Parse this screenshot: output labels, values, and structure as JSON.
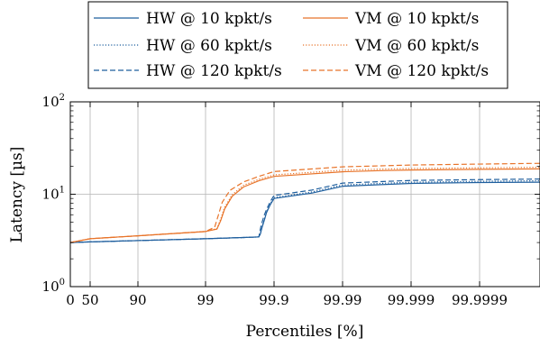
{
  "chart_data": {
    "type": "line",
    "title": "",
    "xlabel": "Percentiles [%]",
    "ylabel": "Latency [µs]",
    "y_scale": "log",
    "ylim": [
      1,
      100
    ],
    "x_scale": "percentile-nines",
    "xlim": [
      0,
      99.99999
    ],
    "grid": true,
    "legend_position": "top-center",
    "x_ticks": [
      {
        "value": 0,
        "label": "0"
      },
      {
        "value": 50,
        "label": "50"
      },
      {
        "value": 90,
        "label": "90"
      },
      {
        "value": 99,
        "label": "99"
      },
      {
        "value": 99.9,
        "label": "99.9"
      },
      {
        "value": 99.99,
        "label": "99.99"
      },
      {
        "value": 99.999,
        "label": "99.999"
      },
      {
        "value": 99.9999,
        "label": "99.9999"
      }
    ],
    "y_ticks": [
      {
        "value": 1,
        "label_base": "10",
        "label_exp": "0"
      },
      {
        "value": 10,
        "label_base": "10",
        "label_exp": "1"
      },
      {
        "value": 100,
        "label_base": "10",
        "label_exp": "2"
      }
    ],
    "series": [
      {
        "name": "HW @ 10 kpkt/s",
        "color": "#1f5f9e",
        "dash": "solid",
        "x": [
          0,
          50,
          90,
          99,
          99.5,
          99.7,
          99.72,
          99.74,
          99.78,
          99.8,
          99.85,
          99.9,
          99.95,
          99.99,
          99.995,
          99.999,
          99.9999,
          99.99999
        ],
        "y": [
          3.0,
          3.05,
          3.15,
          3.3,
          3.4,
          3.45,
          3.7,
          4.3,
          5.5,
          6.3,
          7.7,
          9.0,
          10.3,
          12.2,
          12.7,
          13.1,
          13.4,
          13.5
        ]
      },
      {
        "name": "HW @ 60 kpkt/s",
        "color": "#1f5f9e",
        "dash": "dotted",
        "x": [
          0,
          50,
          90,
          99,
          99.5,
          99.7,
          99.72,
          99.74,
          99.78,
          99.8,
          99.85,
          99.9,
          99.95,
          99.99,
          99.995,
          99.999,
          99.9999,
          99.99999
        ],
        "y": [
          3.0,
          3.05,
          3.15,
          3.3,
          3.4,
          3.45,
          3.75,
          4.4,
          5.6,
          6.4,
          7.9,
          9.2,
          10.6,
          12.6,
          13.1,
          13.5,
          13.8,
          14.0
        ]
      },
      {
        "name": "HW @ 120 kpkt/s",
        "color": "#1f5f9e",
        "dash": "dashed",
        "x": [
          0,
          50,
          90,
          99,
          99.5,
          99.7,
          99.71,
          99.73,
          99.77,
          99.8,
          99.85,
          99.9,
          99.95,
          99.99,
          99.995,
          99.999,
          99.9999,
          99.99999
        ],
        "y": [
          3.0,
          3.05,
          3.15,
          3.3,
          3.4,
          3.45,
          3.8,
          4.6,
          5.9,
          6.8,
          8.3,
          9.7,
          11.1,
          13.2,
          13.7,
          14.1,
          14.4,
          14.6
        ]
      },
      {
        "name": "VM @ 10 kpkt/s",
        "color": "#e8742a",
        "dash": "solid",
        "x": [
          0,
          50,
          90,
          99,
          99.15,
          99.2,
          99.25,
          99.35,
          99.5,
          99.7,
          99.9,
          99.99,
          99.995,
          99.999,
          99.9999,
          99.99999
        ],
        "y": [
          3.0,
          3.3,
          3.55,
          3.95,
          4.2,
          5.2,
          6.9,
          9.5,
          12.0,
          14.0,
          15.6,
          17.5,
          18.0,
          18.3,
          18.6,
          18.8
        ]
      },
      {
        "name": "VM @ 60 kpkt/s",
        "color": "#e8742a",
        "dash": "dotted",
        "x": [
          0,
          50,
          90,
          99,
          99.15,
          99.2,
          99.25,
          99.35,
          99.5,
          99.7,
          99.9,
          99.99,
          99.995,
          99.999,
          99.9999,
          99.99999
        ],
        "y": [
          3.0,
          3.3,
          3.55,
          3.95,
          4.25,
          5.4,
          7.2,
          9.9,
          12.5,
          14.5,
          16.2,
          18.2,
          18.7,
          19.0,
          19.3,
          19.6
        ]
      },
      {
        "name": "VM @ 120 kpkt/s",
        "color": "#e8742a",
        "dash": "dashed",
        "x": [
          0,
          50,
          90,
          99,
          99.12,
          99.17,
          99.22,
          99.32,
          99.5,
          99.7,
          99.9,
          99.99,
          99.995,
          99.999,
          99.9999,
          99.99999
        ],
        "y": [
          3.0,
          3.3,
          3.55,
          3.95,
          4.4,
          6.0,
          8.2,
          11.0,
          13.6,
          15.6,
          17.6,
          19.8,
          20.3,
          20.7,
          21.2,
          21.6
        ]
      }
    ]
  }
}
